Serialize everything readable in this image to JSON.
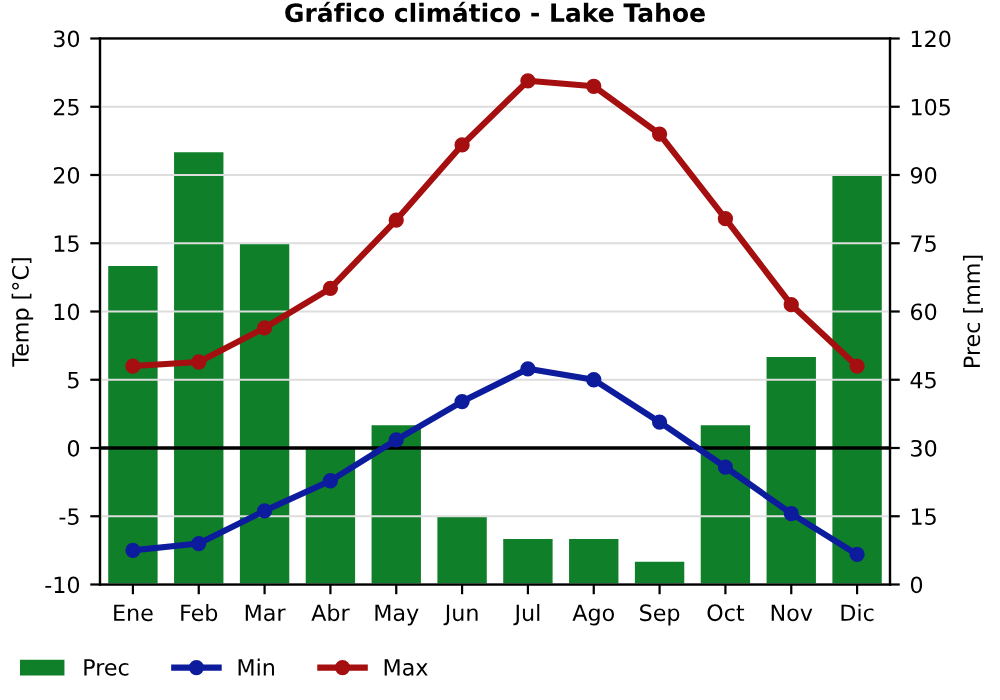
{
  "chart_data": {
    "type": "bar",
    "title": "Gráfico climático - Lake Tahoe",
    "ylabel": "Temp [°C]",
    "y2label": "Prec [mm]",
    "categories": [
      "Ene",
      "Feb",
      "Mar",
      "Abr",
      "May",
      "Jun",
      "Jul",
      "Ago",
      "Sep",
      "Oct",
      "Nov",
      "Dic"
    ],
    "series": [
      {
        "name": "Prec",
        "axis": "y2",
        "color": "#0f7f2a",
        "values": [
          70,
          95,
          75,
          30,
          35,
          15,
          10,
          10,
          5,
          35,
          50,
          90
        ]
      },
      {
        "name": "Min",
        "type": "line",
        "color": "#0d1c9c",
        "values": [
          -7.5,
          -7,
          -4.6,
          -2.4,
          0.6,
          3.4,
          5.8,
          5,
          1.9,
          -1.4,
          -4.8,
          -7.8
        ]
      },
      {
        "name": "Max",
        "type": "line",
        "color": "#a50f0f",
        "values": [
          6,
          6.3,
          8.8,
          11.7,
          16.7,
          22.2,
          26.9,
          26.5,
          23,
          16.8,
          10.5,
          6
        ]
      }
    ],
    "ylim": [
      -10,
      30
    ],
    "yticks": [
      -10,
      -5,
      0,
      5,
      10,
      15,
      20,
      25,
      30
    ],
    "y2lim": [
      0,
      120
    ],
    "y2ticks": [
      0,
      15,
      30,
      45,
      60,
      75,
      90,
      105,
      120
    ],
    "ref_lines": [
      {
        "axis": "y",
        "value": 0,
        "color": "#000000"
      }
    ],
    "grid": "y",
    "legend": "bottom",
    "marker": "circle",
    "line_style": "solid"
  }
}
